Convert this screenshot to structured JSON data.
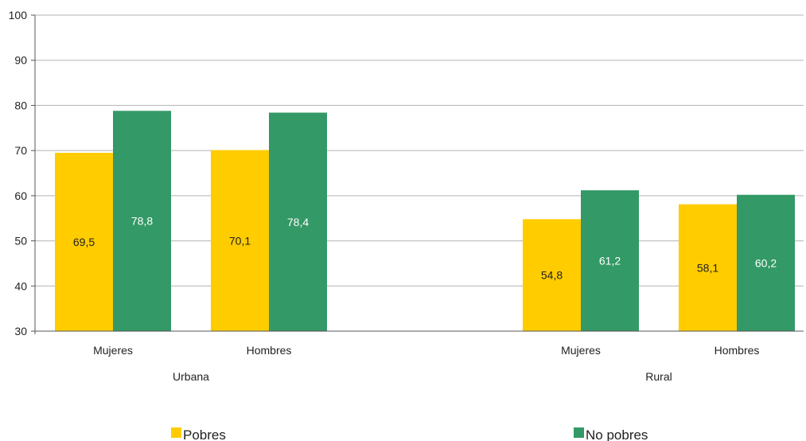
{
  "chart_data": {
    "type": "bar",
    "groups": [
      {
        "label": "Urbana",
        "categories": [
          "Mujeres",
          "Hombres"
        ]
      },
      {
        "label": "Rural",
        "categories": [
          "Mujeres",
          "Hombres"
        ]
      }
    ],
    "categories": [
      "Mujeres",
      "Hombres",
      "Mujeres",
      "Hombres"
    ],
    "series": [
      {
        "name": "Pobres",
        "color": "#FFCC00",
        "label_color": "#222222",
        "values": [
          69.5,
          70.1,
          54.8,
          58.1
        ],
        "labels": [
          "69,5",
          "70,1",
          "54,8",
          "58,1"
        ]
      },
      {
        "name": "No pobres",
        "color": "#339966",
        "label_color": "#ffffff",
        "values": [
          78.8,
          78.4,
          61.2,
          60.2
        ],
        "labels": [
          "78,8",
          "78,4",
          "61,2",
          "60,2"
        ]
      }
    ],
    "ylim": [
      30,
      100
    ],
    "yticks": [
      "30",
      "40",
      "50",
      "60",
      "70",
      "80",
      "90",
      "100"
    ],
    "grid": true,
    "legend": "bottom",
    "title": "",
    "xlabel": "",
    "ylabel": ""
  }
}
